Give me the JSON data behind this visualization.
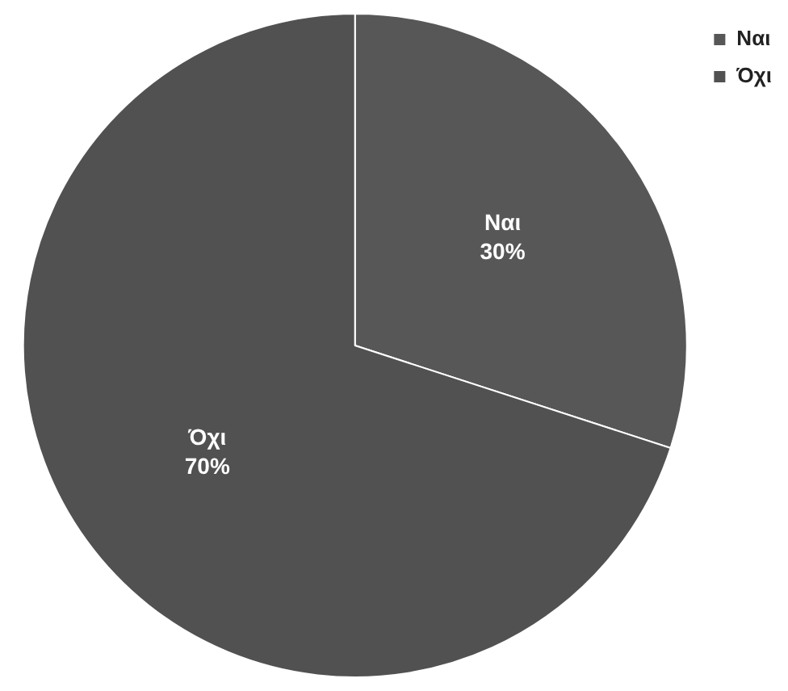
{
  "chart_data": {
    "type": "pie",
    "categories": [
      "Ναι",
      "Όχι"
    ],
    "values": [
      30,
      70
    ],
    "colors": [
      "#575757",
      "#515151"
    ],
    "value_labels": [
      "30%",
      "70%"
    ],
    "legend": "top right"
  }
}
